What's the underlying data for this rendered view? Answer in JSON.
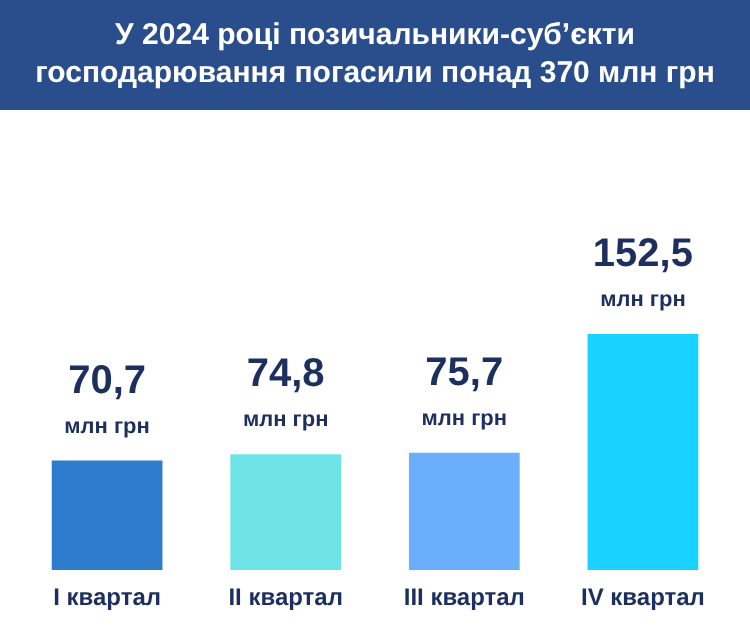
{
  "chart_data": {
    "type": "bar",
    "title": "У 2024 році позичальники-суб’єкти господарювання погасили понад 370 млн грн",
    "categories": [
      "I квартал",
      "II квартал",
      "III квартал",
      "IV квартал"
    ],
    "values": [
      70.7,
      74.8,
      75.7,
      152.5
    ],
    "colors": [
      "#2f7ccc",
      "#6fe4e6",
      "#6aaefc",
      "#1ad2ff"
    ],
    "value_labels": [
      "70,7",
      "74,8",
      "75,7",
      "152,5"
    ],
    "annotations": [
      {
        "text": "млн грн",
        "x": "I квартал",
        "y": 70.7
      },
      {
        "text": "млн грн",
        "x": "II квартал",
        "y": 74.8
      },
      {
        "text": "млн грн",
        "x": "III квартал",
        "y": 75.7
      },
      {
        "text": "млн грн",
        "x": "IV квартал",
        "y": 152.5
      }
    ]
  }
}
